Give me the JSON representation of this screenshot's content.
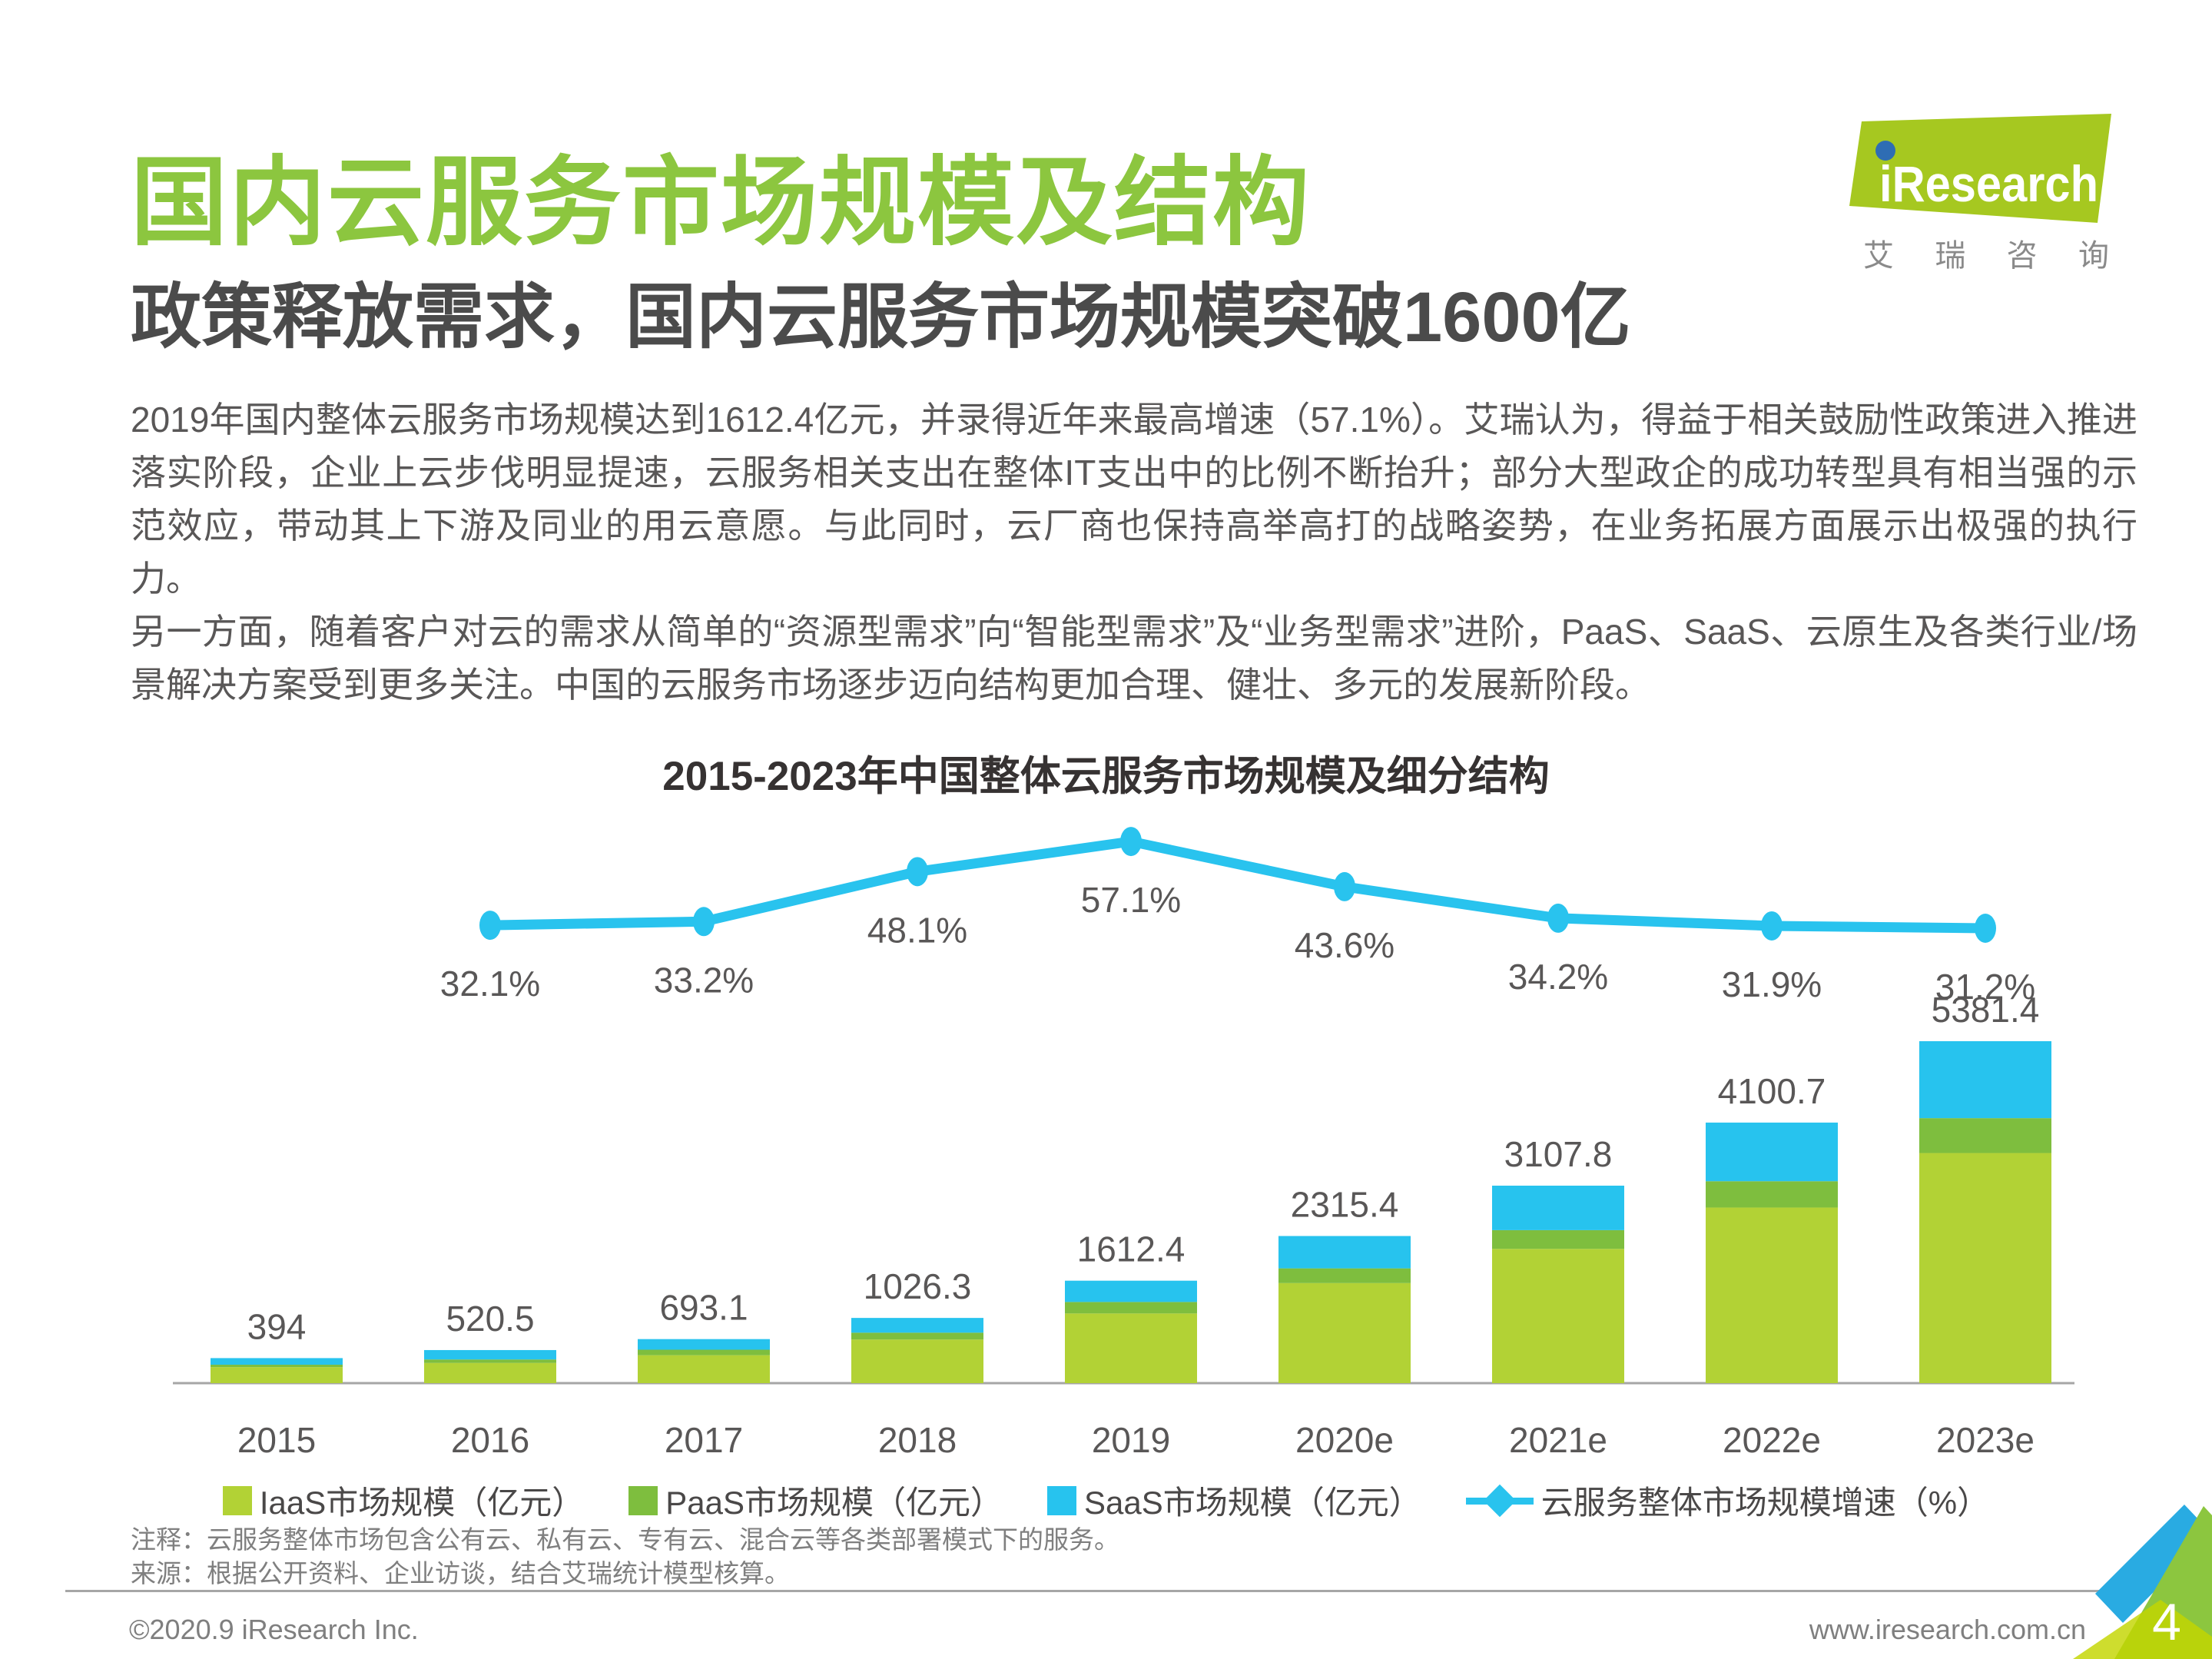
{
  "header": {
    "title": "国内云服务市场规模及结构",
    "subtitle": "政策释放需求，国内云服务市场规模突破1600亿",
    "logo": {
      "brand": "iResearch",
      "subtext": [
        "艾",
        "瑞",
        "咨",
        "询"
      ]
    }
  },
  "body": {
    "paragraphs": [
      "2019年国内整体云服务市场规模达到1612.4亿元，并录得近年来最高增速（57.1%）。艾瑞认为，得益于相关鼓励性政策进入推进落实阶段，企业上云步伐明显提速，云服务相关支出在整体IT支出中的比例不断抬升；部分大型政企的成功转型具有相当强的示范效应，带动其上下游及同业的用云意愿。与此同时，云厂商也保持高举高打的战略姿势，在业务拓展方面展示出极强的执行力。",
      "另一方面，随着客户对云的需求从简单的“资源型需求”向“智能型需求”及“业务型需求”进阶，PaaS、SaaS、云原生及各类行业/场景解决方案受到更多关注。中国的云服务市场逐步迈向结构更加合理、健壮、多元的发展新阶段。"
    ]
  },
  "chart_data": {
    "type": "bar",
    "subtype": "stacked-bars-with-line",
    "title": "2015-2023年中国整体云服务市场规模及细分结构",
    "categories": [
      "2015",
      "2016",
      "2017",
      "2018",
      "2019",
      "2020e",
      "2021e",
      "2022e",
      "2023e"
    ],
    "totals": [
      394,
      520.5,
      693.1,
      1026.3,
      1612.4,
      2315.4,
      3107.8,
      4100.7,
      5381.4
    ],
    "series": [
      {
        "name": "IaaS市场规模（亿元）",
        "values_estimated": [
          252,
          317.5,
          439.1,
          686.3,
          1096.4,
          1574.4,
          2112.8,
          2763.7,
          3621.4
        ]
      },
      {
        "name": "PaaS市场规模（亿元）",
        "values_estimated": [
          38,
          55,
          87,
          108,
          181,
          232,
          295,
          414,
          549
        ]
      },
      {
        "name": "SaaS市场规模（亿元）",
        "values_estimated": [
          104,
          148,
          167,
          232,
          335,
          509,
          700,
          923,
          1211
        ]
      }
    ],
    "series_note": "segment splits are unlabeled in the figure and estimated from pixel heights; only totals are labeled",
    "growth_line": {
      "name": "云服务整体市场规模增速（%）",
      "x": [
        "2016",
        "2017",
        "2018",
        "2019",
        "2020e",
        "2021e",
        "2022e",
        "2023e"
      ],
      "values": [
        32.1,
        33.2,
        48.1,
        57.1,
        43.6,
        34.2,
        31.9,
        31.2
      ]
    },
    "ylim": [
      0,
      5800
    ],
    "grid": "off",
    "legend_position": "bottom-center",
    "colors": {
      "iaas": "#b2d235",
      "paas": "#7ebe3e",
      "saas": "#27c3ee",
      "growth_line": "#29c3ee",
      "label_gray": "#595757",
      "axis_gray": "#a6a6a6"
    }
  },
  "footnotes": [
    "注释：云服务整体市场包含公有云、私有云、专有云、混合云等各类部署模式下的服务。",
    "来源：根据公开资料、企业访谈，结合艾瑞统计模型核算。"
  ],
  "footer": {
    "copyright": "©2020.9 iResearch Inc.",
    "website": "www.iresearch.com.cn",
    "page_number": "4"
  },
  "theme_colors": {
    "title_green": "#8cc63f",
    "logo_green": "#a6c820",
    "logo_dot_blue": "#2e6db4",
    "corner_blue": "#29abe2",
    "corner_green": "#8cc63f",
    "corner_yellow": "#c3d600"
  }
}
